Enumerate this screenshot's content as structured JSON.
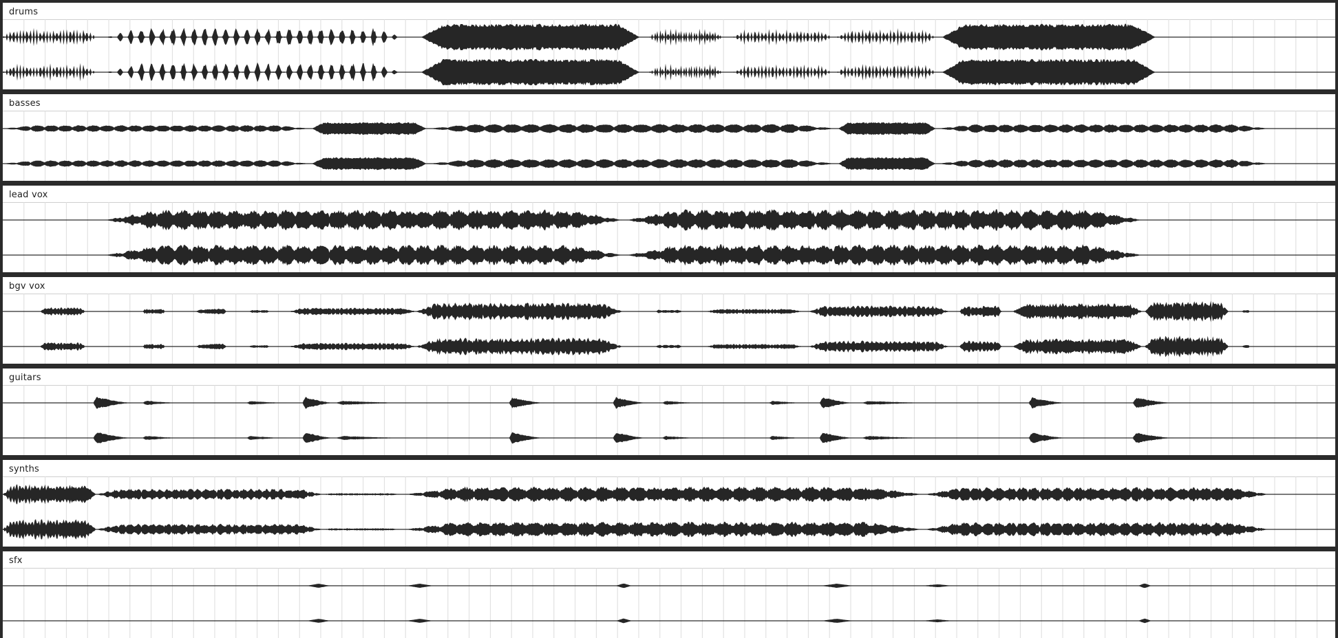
{
  "window": {
    "view": "multitrack-arrange"
  },
  "colors": {
    "background": "#2b2b2b",
    "lane": "#ffffff",
    "gridline": "#dcdcdc",
    "waveform": "#262626"
  },
  "tracks": [
    {
      "id": "drums",
      "name": "drums",
      "channels": 2,
      "regions": [
        {
          "start": 0.0,
          "end": 0.07,
          "level": 0.62,
          "style": "hits"
        },
        {
          "start": 0.078,
          "end": 0.3,
          "level": 0.66,
          "style": "hits"
        },
        {
          "start": 0.314,
          "end": 0.478,
          "level": 0.88,
          "style": "dense"
        },
        {
          "start": 0.485,
          "end": 0.54,
          "level": 0.6,
          "style": "hits"
        },
        {
          "start": 0.548,
          "end": 0.622,
          "level": 0.55,
          "style": "hits"
        },
        {
          "start": 0.626,
          "end": 0.7,
          "level": 0.6,
          "style": "hits"
        },
        {
          "start": 0.705,
          "end": 0.865,
          "level": 0.88,
          "style": "dense"
        }
      ]
    },
    {
      "id": "basses",
      "name": "basses",
      "channels": 2,
      "regions": [
        {
          "start": 0.0,
          "end": 0.23,
          "level": 0.22,
          "style": "notes"
        },
        {
          "start": 0.232,
          "end": 0.318,
          "level": 0.42,
          "style": "dense"
        },
        {
          "start": 0.32,
          "end": 0.625,
          "level": 0.3,
          "style": "notes"
        },
        {
          "start": 0.627,
          "end": 0.7,
          "level": 0.42,
          "style": "dense"
        },
        {
          "start": 0.702,
          "end": 0.95,
          "level": 0.28,
          "style": "notes"
        }
      ]
    },
    {
      "id": "lead-vox",
      "name": "lead vox",
      "channels": 2,
      "regions": [
        {
          "start": 0.077,
          "end": 0.465,
          "level": 0.7,
          "style": "phrases"
        },
        {
          "start": 0.468,
          "end": 0.855,
          "level": 0.72,
          "style": "phrases"
        }
      ]
    },
    {
      "id": "bgv-vox",
      "name": "bgv vox",
      "channels": 2,
      "regions": [
        {
          "start": 0.028,
          "end": 0.062,
          "level": 0.28,
          "style": "phrases"
        },
        {
          "start": 0.105,
          "end": 0.122,
          "level": 0.18,
          "style": "phrases"
        },
        {
          "start": 0.145,
          "end": 0.168,
          "level": 0.22,
          "style": "phrases"
        },
        {
          "start": 0.185,
          "end": 0.2,
          "level": 0.1,
          "style": "phrases"
        },
        {
          "start": 0.215,
          "end": 0.31,
          "level": 0.26,
          "style": "phrases"
        },
        {
          "start": 0.31,
          "end": 0.465,
          "level": 0.6,
          "style": "dense-phrases"
        },
        {
          "start": 0.49,
          "end": 0.51,
          "level": 0.12,
          "style": "phrases"
        },
        {
          "start": 0.528,
          "end": 0.6,
          "level": 0.18,
          "style": "phrases"
        },
        {
          "start": 0.605,
          "end": 0.71,
          "level": 0.4,
          "style": "phrases"
        },
        {
          "start": 0.718,
          "end": 0.75,
          "level": 0.4,
          "style": "phrases"
        },
        {
          "start": 0.758,
          "end": 0.855,
          "level": 0.55,
          "style": "dense-phrases"
        },
        {
          "start": 0.857,
          "end": 0.92,
          "level": 0.72,
          "style": "phrases"
        },
        {
          "start": 0.93,
          "end": 0.936,
          "level": 0.1,
          "style": "phrases"
        }
      ]
    },
    {
      "id": "guitars",
      "name": "guitars",
      "channels": 2,
      "regions": [
        {
          "start": 0.068,
          "end": 0.098,
          "level": 0.5,
          "style": "swell"
        },
        {
          "start": 0.105,
          "end": 0.135,
          "level": 0.18,
          "style": "swell"
        },
        {
          "start": 0.183,
          "end": 0.215,
          "level": 0.16,
          "style": "swell"
        },
        {
          "start": 0.225,
          "end": 0.25,
          "level": 0.48,
          "style": "swell"
        },
        {
          "start": 0.25,
          "end": 0.31,
          "level": 0.16,
          "style": "swell"
        },
        {
          "start": 0.38,
          "end": 0.408,
          "level": 0.46,
          "style": "swell"
        },
        {
          "start": 0.458,
          "end": 0.485,
          "level": 0.46,
          "style": "swell"
        },
        {
          "start": 0.495,
          "end": 0.525,
          "level": 0.16,
          "style": "swell"
        },
        {
          "start": 0.575,
          "end": 0.605,
          "level": 0.16,
          "style": "swell"
        },
        {
          "start": 0.613,
          "end": 0.64,
          "level": 0.48,
          "style": "swell"
        },
        {
          "start": 0.645,
          "end": 0.7,
          "level": 0.16,
          "style": "swell"
        },
        {
          "start": 0.77,
          "end": 0.8,
          "level": 0.44,
          "style": "swell"
        },
        {
          "start": 0.848,
          "end": 0.88,
          "level": 0.44,
          "style": "swell"
        }
      ]
    },
    {
      "id": "synths",
      "name": "synths",
      "channels": 2,
      "regions": [
        {
          "start": 0.0,
          "end": 0.07,
          "level": 0.7,
          "style": "phrases"
        },
        {
          "start": 0.07,
          "end": 0.24,
          "level": 0.38,
          "style": "phrases"
        },
        {
          "start": 0.24,
          "end": 0.298,
          "level": 0.08,
          "style": "phrases"
        },
        {
          "start": 0.302,
          "end": 0.69,
          "level": 0.52,
          "style": "phrases"
        },
        {
          "start": 0.692,
          "end": 0.95,
          "level": 0.48,
          "style": "phrases"
        }
      ]
    },
    {
      "id": "sfx",
      "name": "sfx",
      "channels": 2,
      "regions": [
        {
          "start": 0.228,
          "end": 0.246,
          "level": 0.14,
          "style": "blip"
        },
        {
          "start": 0.303,
          "end": 0.323,
          "level": 0.14,
          "style": "blip"
        },
        {
          "start": 0.46,
          "end": 0.472,
          "level": 0.16,
          "style": "blip"
        },
        {
          "start": 0.614,
          "end": 0.638,
          "level": 0.14,
          "style": "blip"
        },
        {
          "start": 0.69,
          "end": 0.713,
          "level": 0.1,
          "style": "blip"
        },
        {
          "start": 0.852,
          "end": 0.862,
          "level": 0.16,
          "style": "blip"
        }
      ]
    }
  ]
}
